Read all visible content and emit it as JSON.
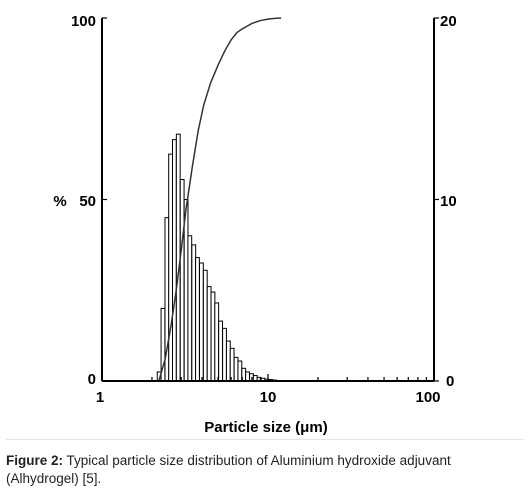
{
  "chart_data": {
    "type": "bar",
    "x_scale": "log",
    "xlim": [
      1,
      100
    ],
    "x_ticks": [
      "1",
      "10",
      "100"
    ],
    "left_axis": {
      "label": "%",
      "ylim": [
        0,
        100
      ],
      "ticks": [
        "0",
        "50",
        "100"
      ]
    },
    "right_axis": {
      "ylim": [
        0,
        20
      ],
      "ticks": [
        "0",
        "10",
        "20"
      ]
    },
    "xlabel": "Particle size (μm)",
    "histogram_bins": [
      {
        "x": 2.21,
        "value": 0.5
      },
      {
        "x": 2.33,
        "value": 4.0
      },
      {
        "x": 2.46,
        "value": 9.0
      },
      {
        "x": 2.59,
        "value": 12.5
      },
      {
        "x": 2.73,
        "value": 13.3
      },
      {
        "x": 2.88,
        "value": 13.6
      },
      {
        "x": 3.04,
        "value": 11.1
      },
      {
        "x": 3.21,
        "value": 10.0
      },
      {
        "x": 3.38,
        "value": 8.0
      },
      {
        "x": 3.57,
        "value": 7.5
      },
      {
        "x": 3.76,
        "value": 6.8
      },
      {
        "x": 3.97,
        "value": 6.5
      },
      {
        "x": 4.19,
        "value": 6.1
      },
      {
        "x": 4.42,
        "value": 5.2
      },
      {
        "x": 4.66,
        "value": 4.9
      },
      {
        "x": 4.91,
        "value": 4.3
      },
      {
        "x": 5.18,
        "value": 3.3
      },
      {
        "x": 5.47,
        "value": 2.9
      },
      {
        "x": 5.77,
        "value": 2.2
      },
      {
        "x": 6.08,
        "value": 1.8
      },
      {
        "x": 6.42,
        "value": 1.3
      },
      {
        "x": 6.77,
        "value": 1.1
      },
      {
        "x": 7.14,
        "value": 0.7
      },
      {
        "x": 7.53,
        "value": 0.5
      },
      {
        "x": 7.95,
        "value": 0.4
      },
      {
        "x": 8.38,
        "value": 0.3
      },
      {
        "x": 8.84,
        "value": 0.2
      },
      {
        "x": 9.33,
        "value": 0.15
      },
      {
        "x": 9.84,
        "value": 0.1
      },
      {
        "x": 10.4,
        "value": 0.08
      },
      {
        "x": 10.9,
        "value": 0.05
      },
      {
        "x": 11.5,
        "value": 0.03
      }
    ],
    "cumulative_curve": {
      "x": [
        2.2,
        2.4,
        2.6,
        2.8,
        3.0,
        3.2,
        3.5,
        3.8,
        4.1,
        4.5,
        5.0,
        5.5,
        6.0,
        6.5,
        7.0,
        8.0,
        9.0,
        10.0,
        11.0,
        12.0
      ],
      "y": [
        0,
        6,
        15,
        25,
        36,
        47,
        59,
        69,
        76,
        82,
        87,
        91,
        94,
        96,
        97,
        98.5,
        99.3,
        99.7,
        99.9,
        100
      ]
    }
  },
  "caption": {
    "label": "Figure 2:",
    "text": " Typical particle size distribution of Aluminium hydroxide adjuvant (Alhydrogel) [5]."
  }
}
